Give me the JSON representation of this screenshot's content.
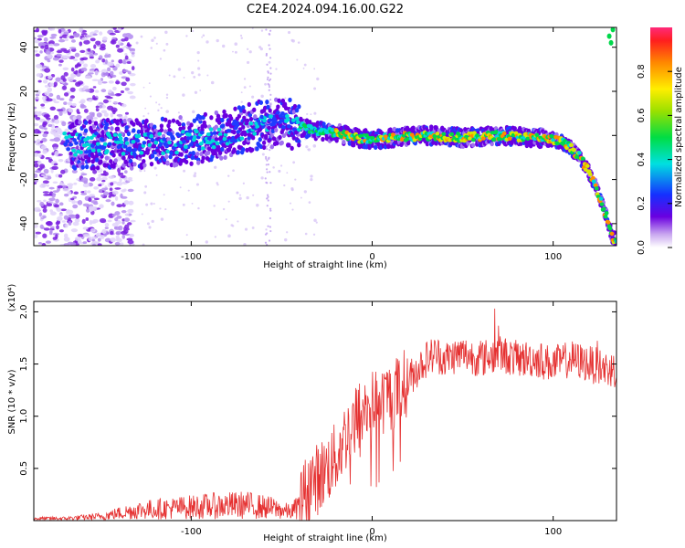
{
  "title": "C2E4.2024.094.16.00.G22",
  "colorbar": {
    "label": "Normalized spectral amplitude",
    "ticks": [
      "0.0",
      "0.2",
      "0.4",
      "0.6",
      "0.8"
    ]
  },
  "chart_data": [
    {
      "type": "heatmap",
      "title": "C2E4.2024.094.16.00.G22",
      "xlabel": "Height of straight line (km)",
      "ylabel": "Frequency (Hz)",
      "xlim": [
        -187,
        135
      ],
      "ylim": [
        -50,
        49
      ],
      "xticks": [
        "-100",
        "0",
        "100"
      ],
      "yticks": [
        "40",
        "20",
        "0",
        "-20",
        "-40"
      ],
      "colorbar_label": "Normalized spectral amplitude",
      "colorbar_range": [
        0,
        1
      ],
      "ridge": {
        "x": [
          -170,
          -150,
          -130,
          -110,
          -90,
          -75,
          -60,
          -50,
          -40,
          -30,
          -20,
          -10,
          0,
          10,
          30,
          50,
          70,
          90,
          100,
          105,
          110,
          115,
          120,
          125,
          130,
          133
        ],
        "y": [
          -4,
          -4,
          -4,
          -3,
          -1,
          2,
          5,
          6,
          4,
          2,
          1,
          -1,
          -2,
          -1,
          0,
          -1,
          0,
          -1,
          -2,
          -3,
          -6,
          -10,
          -17,
          -26,
          -38,
          -47
        ]
      }
    },
    {
      "type": "line",
      "xlabel": "Height of straight line (km)",
      "ylabel": "SNR (10 * v/v)",
      "yscale_label": "(x10⁴)",
      "xlim": [
        -187,
        135
      ],
      "ylim": [
        0,
        2.1
      ],
      "xticks": [
        "-100",
        "0",
        "100"
      ],
      "yticks": [
        "0.5",
        "1.0",
        "1.5",
        "2.0"
      ],
      "series": [
        {
          "color": "#e53030",
          "x": [
            -187,
            -170,
            -150,
            -130,
            -110,
            -90,
            -70,
            -55,
            -45,
            -40,
            -35,
            -30,
            -25,
            -20,
            -15,
            -10,
            -5,
            0,
            5,
            10,
            15,
            20,
            25,
            30,
            35,
            40,
            50,
            60,
            70,
            80,
            90,
            100,
            110,
            120,
            130,
            135
          ],
          "values": [
            0.02,
            0.02,
            0.04,
            0.1,
            0.12,
            0.14,
            0.15,
            0.12,
            0.08,
            0.15,
            0.35,
            0.4,
            0.5,
            0.6,
            0.8,
            0.95,
            1.05,
            1.1,
            1.15,
            1.2,
            1.25,
            1.35,
            1.45,
            1.55,
            1.6,
            1.55,
            1.6,
            1.55,
            1.6,
            1.55,
            1.55,
            1.5,
            1.55,
            1.5,
            1.45,
            1.45
          ]
        }
      ]
    }
  ]
}
